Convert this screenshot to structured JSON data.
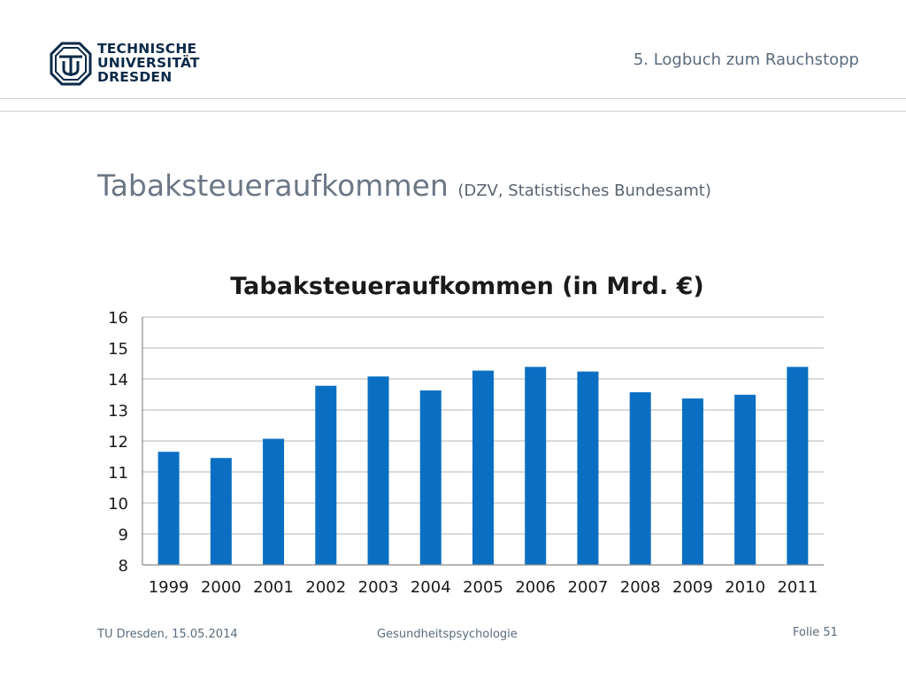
{
  "header": {
    "logo_lines": [
      "TECHNISCHE",
      "UNIVERSITÄT",
      "DRESDEN"
    ],
    "section": "5. Logbuch zum Rauchstopp"
  },
  "slide": {
    "title": "Tabaksteueraufkommen",
    "subtitle": "(DZV, Statistisches Bundesamt)"
  },
  "chart_data": {
    "type": "bar",
    "title": "Tabaksteueraufkommen (in Mrd. €)",
    "categories": [
      "1999",
      "2000",
      "2001",
      "2002",
      "2003",
      "2004",
      "2005",
      "2006",
      "2007",
      "2008",
      "2009",
      "2010",
      "2011"
    ],
    "values": [
      11.65,
      11.45,
      12.07,
      13.78,
      14.08,
      13.63,
      14.27,
      14.39,
      14.24,
      13.57,
      13.37,
      13.49,
      14.39
    ],
    "ylim": [
      8,
      16
    ],
    "yticks": [
      8,
      9,
      10,
      11,
      12,
      13,
      14,
      15,
      16
    ],
    "xlabel": "",
    "ylabel": "",
    "grid": true,
    "bar_color": "#0a6fc2"
  },
  "footer": {
    "left": "TU Dresden, 15.05.2014",
    "center": "Gesundheitspsychologie",
    "right": "Folie 51"
  }
}
